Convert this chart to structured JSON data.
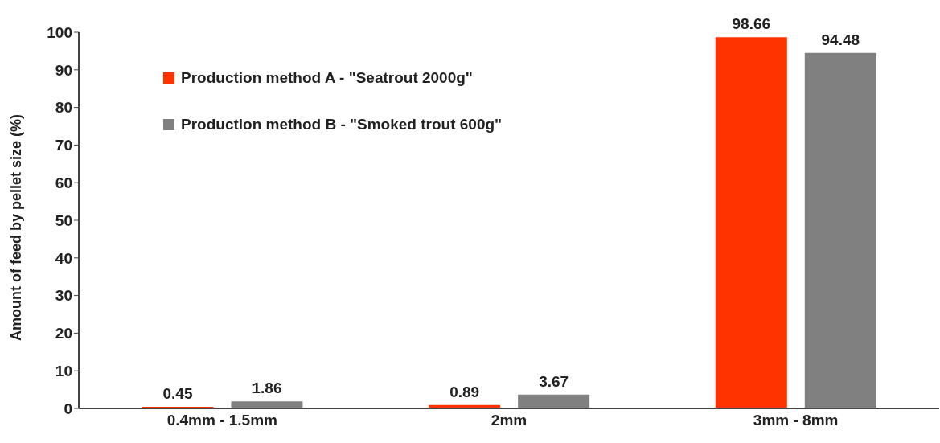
{
  "chart_data": {
    "type": "bar",
    "ylabel": "Amount of feed by pellet size (%)",
    "categories": [
      "0.4mm - 1.5mm",
      "2mm",
      "3mm - 8mm"
    ],
    "series": [
      {
        "name": "Production method A - \"Seatrout 2000g\"",
        "color": "#ff3300",
        "values": [
          0.45,
          0.89,
          98.66
        ]
      },
      {
        "name": "Production method B - \"Smoked trout 600g\"",
        "color": "#808080",
        "values": [
          1.86,
          3.67,
          94.48
        ]
      }
    ],
    "ylim": [
      0,
      100
    ],
    "yticks": [
      0,
      10,
      20,
      30,
      40,
      50,
      60,
      70,
      80,
      90,
      100
    ],
    "grid": false,
    "legend": "top left",
    "data_labels": true
  }
}
